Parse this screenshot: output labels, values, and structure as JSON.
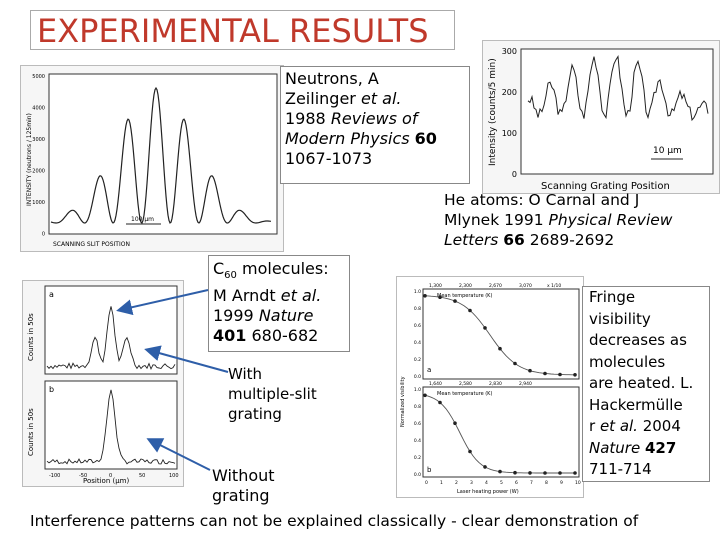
{
  "title": "EXPERIMENTAL RESULTS",
  "neutrons_caption": {
    "line1": "Neutrons, A",
    "line2a": "Zeilinger ",
    "line2b": "et al.",
    "line3a": "1988 ",
    "line3b": "Reviews of",
    "line4a": "Modern Physics ",
    "line4b": "60",
    "line5": "1067-1073"
  },
  "helium_caption": {
    "line1a": "He atoms: O Carnal and J",
    "line2a": "Mlynek 1991 ",
    "line2b": "Physical Review",
    "line3a": "Letters ",
    "line3b": "66",
    "line3c": " 2689-2692"
  },
  "c60_caption": {
    "line1a": "C",
    "line1sub": "60",
    "line1b": " molecules:",
    "line2a": "M Arndt ",
    "line2b": "et al.",
    "line3a": "1999 ",
    "line3b": "Nature",
    "line4a": "401",
    "line4b": " 680-682"
  },
  "multislit_label": {
    "line1": "With",
    "line2": "multiple-slit",
    "line3": "grating"
  },
  "without_label": {
    "line1": "Without",
    "line2": "grating"
  },
  "fringe_caption": {
    "l1": "Fringe",
    "l2": "visibility",
    "l3": "decreases as",
    "l4": "molecules",
    "l5": "are heated. L.",
    "l6": "Hackermülle",
    "l7a": "r ",
    "l7b": "et al.",
    "l7c": " 2004",
    "l8a": "Nature ",
    "l8b": "427",
    "l9": "711-714"
  },
  "footer": "Interference patterns can not be explained classically - clear demonstration of",
  "neutron_plot": {
    "y_ticks": [
      "5000",
      "4000",
      "3000",
      "2000",
      "1000",
      "0"
    ],
    "ylabel": "INTENSITY (neutrons / 125min)",
    "xlabel": "SCANNING SLIT POSITION",
    "scale": "100 μm"
  },
  "helium_plot": {
    "y_ticks": [
      "300",
      "200",
      "100",
      "0"
    ],
    "ylabel": "Intensity (counts/5 min)",
    "xlabel": "Scanning Grating Position",
    "scale": "10 μm"
  },
  "c60_plot": {
    "ylabel_a": "Counts in 50s",
    "ylabel_b": "Counts in 50s",
    "xlabel": "Position (μm)",
    "panel_a": "a",
    "panel_b": "b",
    "x_ticks": [
      "-100",
      "-50",
      "0",
      "50",
      "100"
    ]
  },
  "fringe_plot": {
    "ylabel": "Normalized visibility",
    "xlabel_top": "Mean temperature (K)",
    "xlabel_bottom": "Laser heating power (W)",
    "top_ticks_1": [
      "1,300",
      "2,300",
      "2,670",
      "3,070"
    ],
    "top_ticks_2": [
      "1,640",
      "2,580",
      "2,830",
      "2,940"
    ],
    "top_tick_x": "x 1/10",
    "y_ticks": [
      "1.0",
      "0.8",
      "0.6",
      "0.4",
      "0.2",
      "0.0"
    ],
    "x_ticks": [
      "0",
      "1",
      "2",
      "3",
      "4",
      "5",
      "6",
      "7",
      "8",
      "9",
      "10"
    ],
    "panel_a": "a",
    "panel_b": "b"
  }
}
